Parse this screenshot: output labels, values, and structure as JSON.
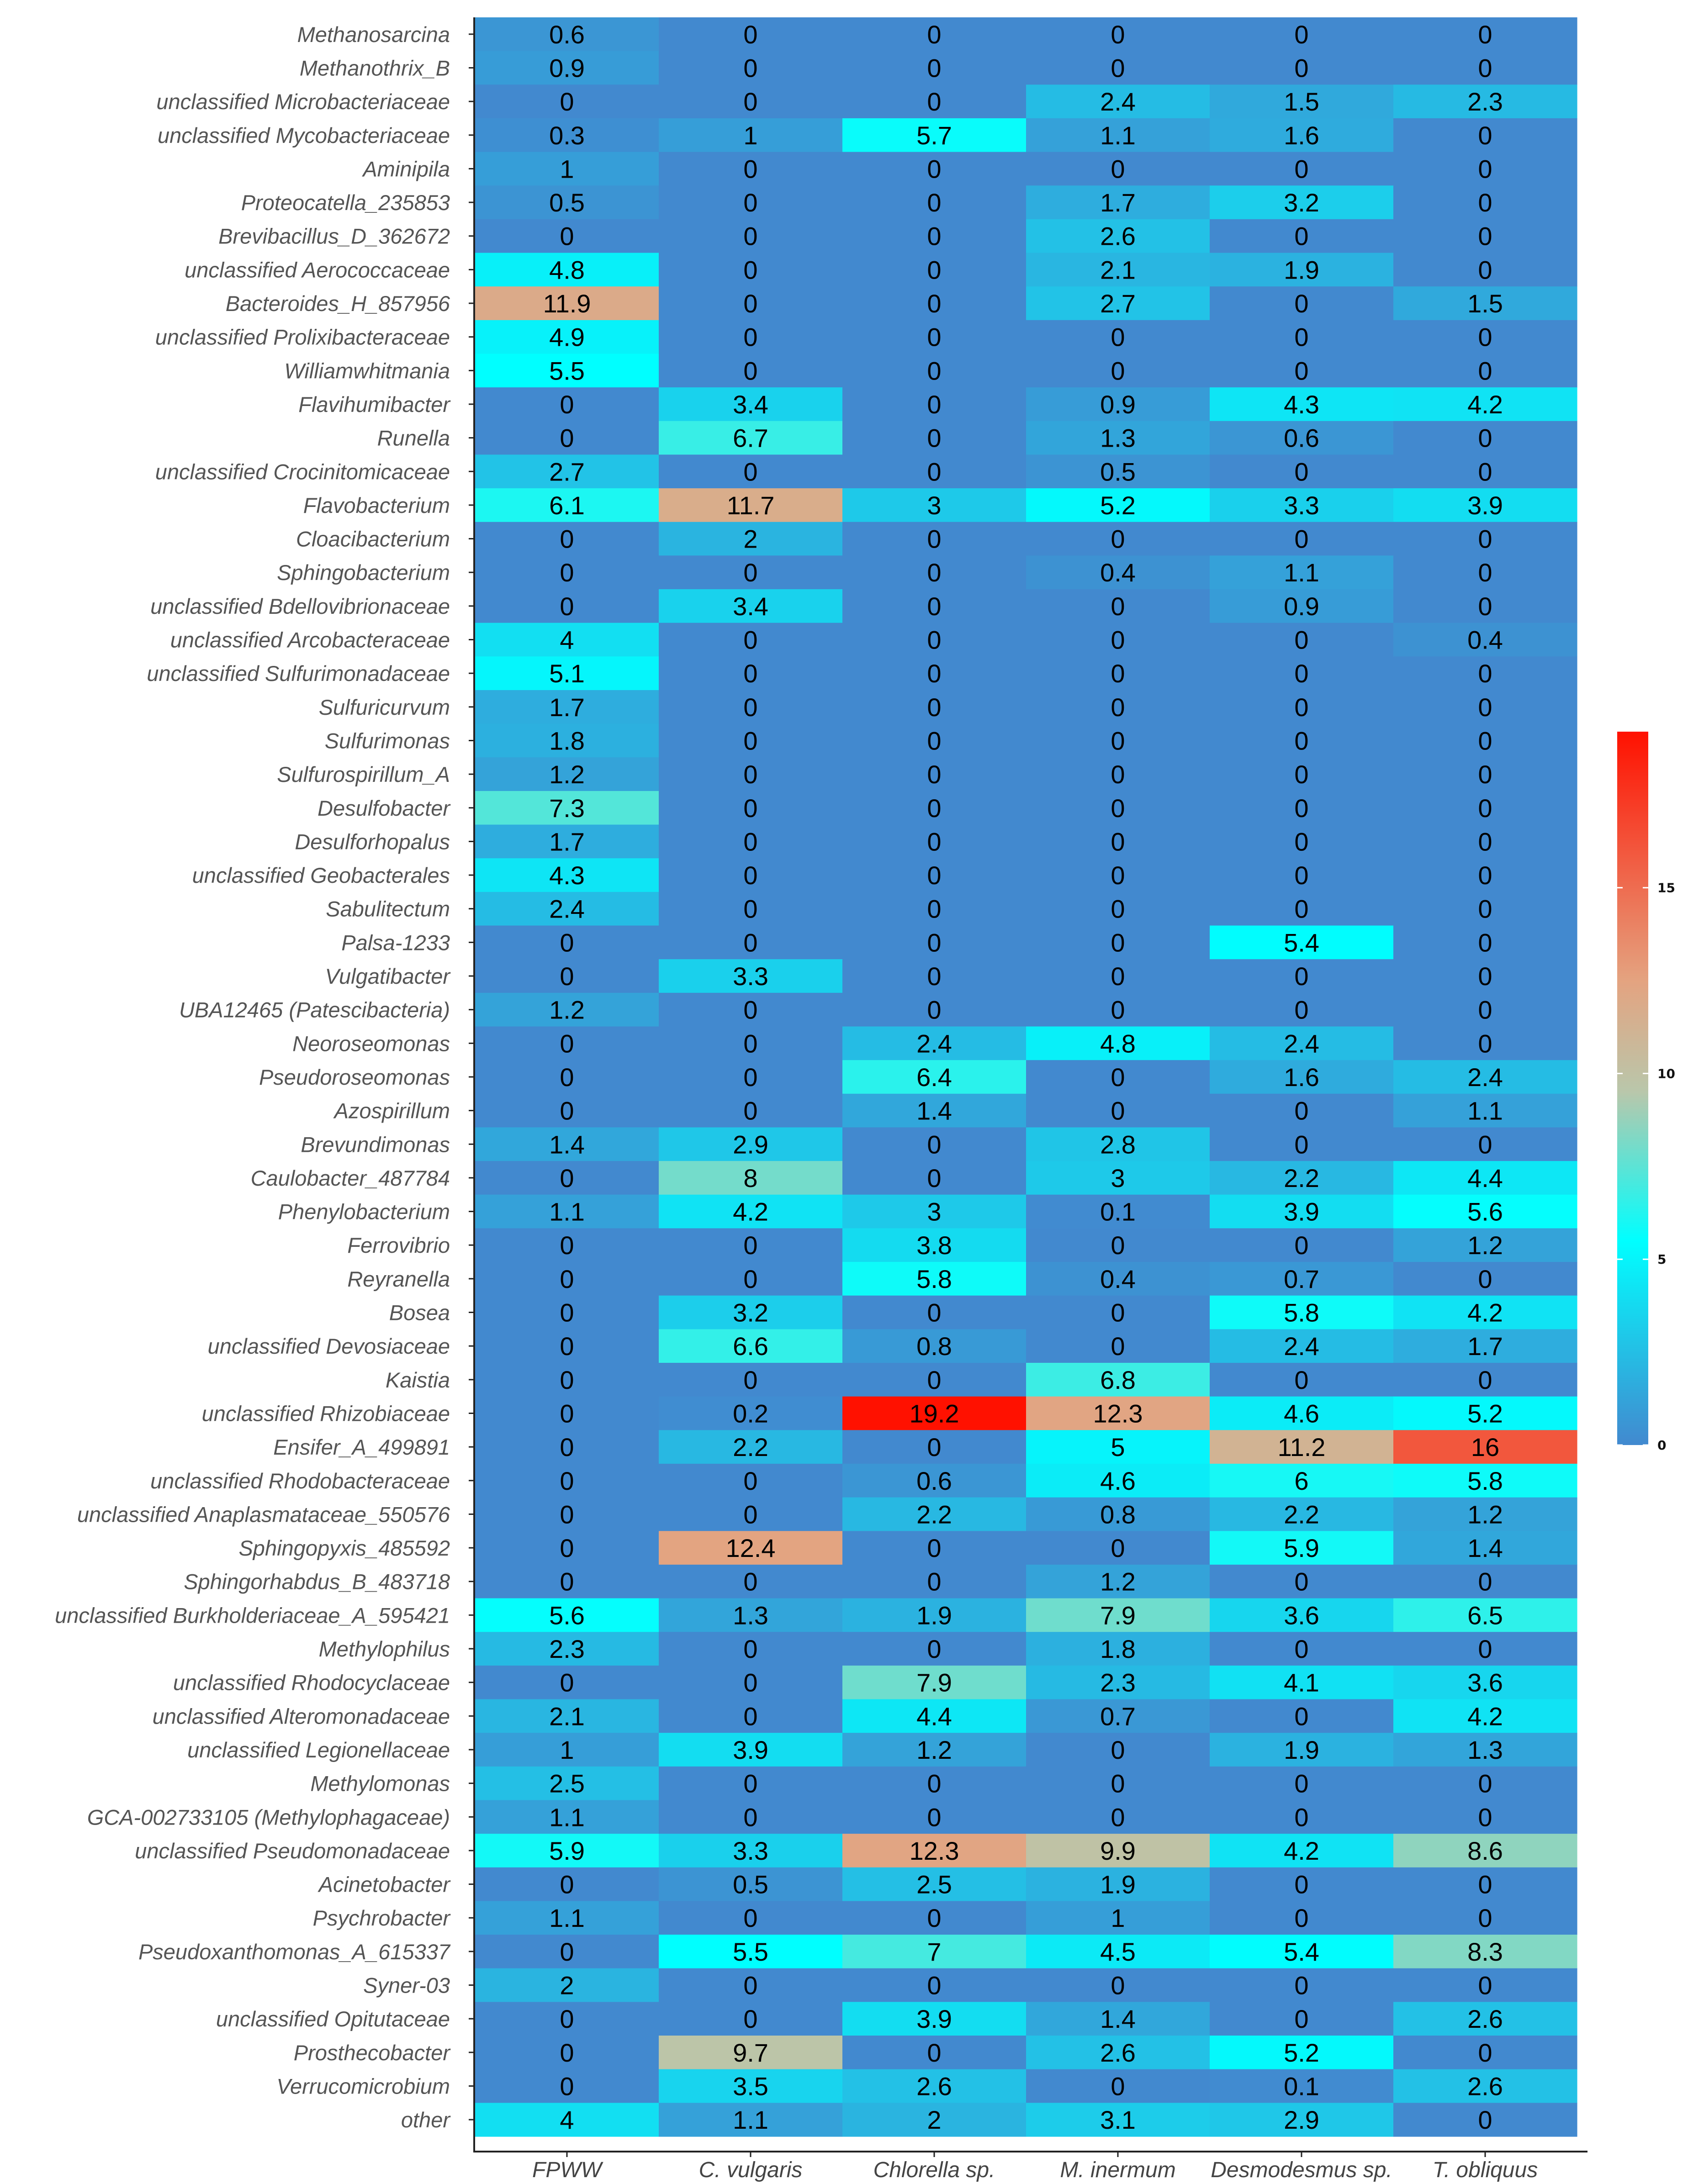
{
  "chart_data": {
    "type": "heatmap",
    "title": "",
    "xlabel": "",
    "ylabel": "",
    "columns": [
      "FPWW",
      "C. vulgaris",
      "Chlorella sp.",
      "M. inermum",
      "Desmodesmus sp.",
      "T. obliquus"
    ],
    "rows": [
      {
        "label": "Methanosarcina",
        "values": [
          0.6,
          0,
          0,
          0,
          0,
          0
        ]
      },
      {
        "label": "Methanothrix_B",
        "values": [
          0.9,
          0,
          0,
          0,
          0,
          0
        ]
      },
      {
        "label": "unclassified Microbacteriaceae",
        "values": [
          0,
          0,
          0,
          2.4,
          1.5,
          2.3
        ]
      },
      {
        "label": "unclassified Mycobacteriaceae",
        "values": [
          0.3,
          1,
          5.7,
          1.1,
          1.6,
          0
        ]
      },
      {
        "label": "Aminipila",
        "values": [
          1,
          0,
          0,
          0,
          0,
          0
        ]
      },
      {
        "label": "Proteocatella_235853",
        "values": [
          0.5,
          0,
          0,
          1.7,
          3.2,
          0
        ]
      },
      {
        "label": "Brevibacillus_D_362672",
        "values": [
          0,
          0,
          0,
          2.6,
          0,
          0
        ]
      },
      {
        "label": "unclassified Aerococcaceae",
        "values": [
          4.8,
          0,
          0,
          2.1,
          1.9,
          0
        ]
      },
      {
        "label": "Bacteroides_H_857956",
        "values": [
          11.9,
          0,
          0,
          2.7,
          0,
          1.5
        ]
      },
      {
        "label": "unclassified Prolixibacteraceae",
        "values": [
          4.9,
          0,
          0,
          0,
          0,
          0
        ]
      },
      {
        "label": "Williamwhitmania",
        "values": [
          5.5,
          0,
          0,
          0,
          0,
          0
        ]
      },
      {
        "label": "Flavihumibacter",
        "values": [
          0,
          3.4,
          0,
          0.9,
          4.3,
          4.2
        ]
      },
      {
        "label": "Runella",
        "values": [
          0,
          6.7,
          0,
          1.3,
          0.6,
          0
        ]
      },
      {
        "label": "unclassified Crocinitomicaceae",
        "values": [
          2.7,
          0,
          0,
          0.5,
          0,
          0
        ]
      },
      {
        "label": "Flavobacterium",
        "values": [
          6.1,
          11.7,
          3,
          5.2,
          3.3,
          3.9
        ]
      },
      {
        "label": "Cloacibacterium",
        "values": [
          0,
          2,
          0,
          0,
          0,
          0
        ]
      },
      {
        "label": "Sphingobacterium",
        "values": [
          0,
          0,
          0,
          0.4,
          1.1,
          0
        ]
      },
      {
        "label": "unclassified Bdellovibrionaceae",
        "values": [
          0,
          3.4,
          0,
          0,
          0.9,
          0
        ]
      },
      {
        "label": "unclassified Arcobacteraceae",
        "values": [
          4,
          0,
          0,
          0,
          0,
          0.4
        ]
      },
      {
        "label": "unclassified Sulfurimonadaceae",
        "values": [
          5.1,
          0,
          0,
          0,
          0,
          0
        ]
      },
      {
        "label": "Sulfuricurvum",
        "values": [
          1.7,
          0,
          0,
          0,
          0,
          0
        ]
      },
      {
        "label": "Sulfurimonas",
        "values": [
          1.8,
          0,
          0,
          0,
          0,
          0
        ]
      },
      {
        "label": "Sulfurospirillum_A",
        "values": [
          1.2,
          0,
          0,
          0,
          0,
          0
        ]
      },
      {
        "label": "Desulfobacter",
        "values": [
          7.3,
          0,
          0,
          0,
          0,
          0
        ]
      },
      {
        "label": "Desulforhopalus",
        "values": [
          1.7,
          0,
          0,
          0,
          0,
          0
        ]
      },
      {
        "label": "unclassified Geobacterales",
        "values": [
          4.3,
          0,
          0,
          0,
          0,
          0
        ]
      },
      {
        "label": "Sabulitectum",
        "values": [
          2.4,
          0,
          0,
          0,
          0,
          0
        ]
      },
      {
        "label": "Palsa-1233",
        "values": [
          0,
          0,
          0,
          0,
          5.4,
          0
        ]
      },
      {
        "label": "Vulgatibacter",
        "values": [
          0,
          3.3,
          0,
          0,
          0,
          0
        ]
      },
      {
        "label": "UBA12465 (Patescibacteria)",
        "values": [
          1.2,
          0,
          0,
          0,
          0,
          0
        ]
      },
      {
        "label": "Neoroseomonas",
        "values": [
          0,
          0,
          2.4,
          4.8,
          2.4,
          0
        ]
      },
      {
        "label": "Pseudoroseomonas",
        "values": [
          0,
          0,
          6.4,
          0,
          1.6,
          2.4
        ]
      },
      {
        "label": "Azospirillum",
        "values": [
          0,
          0,
          1.4,
          0,
          0,
          1.1
        ]
      },
      {
        "label": "Brevundimonas",
        "values": [
          1.4,
          2.9,
          0,
          2.8,
          0,
          0
        ]
      },
      {
        "label": "Caulobacter_487784",
        "values": [
          0,
          8,
          0,
          3,
          2.2,
          4.4
        ]
      },
      {
        "label": "Phenylobacterium",
        "values": [
          1.1,
          4.2,
          3,
          0.1,
          3.9,
          5.6
        ]
      },
      {
        "label": "Ferrovibrio",
        "values": [
          0,
          0,
          3.8,
          0,
          0,
          1.2
        ]
      },
      {
        "label": "Reyranella",
        "values": [
          0,
          0,
          5.8,
          0.4,
          0.7,
          0
        ]
      },
      {
        "label": "Bosea",
        "values": [
          0,
          3.2,
          0,
          0,
          5.8,
          4.2
        ]
      },
      {
        "label": "unclassified Devosiaceae",
        "values": [
          0,
          6.6,
          0.8,
          0,
          2.4,
          1.7
        ]
      },
      {
        "label": "Kaistia",
        "values": [
          0,
          0,
          0,
          6.8,
          0,
          0
        ]
      },
      {
        "label": "unclassified Rhizobiaceae",
        "values": [
          0,
          0.2,
          19.2,
          12.3,
          4.6,
          5.2
        ]
      },
      {
        "label": "Ensifer_A_499891",
        "values": [
          0,
          2.2,
          0,
          5,
          11.2,
          16
        ]
      },
      {
        "label": "unclassified Rhodobacteraceae",
        "values": [
          0,
          0,
          0.6,
          4.6,
          6,
          5.8
        ]
      },
      {
        "label": "unclassified Anaplasmataceae_550576",
        "values": [
          0,
          0,
          2.2,
          0.8,
          2.2,
          1.2
        ]
      },
      {
        "label": "Sphingopyxis_485592",
        "values": [
          0,
          12.4,
          0,
          0,
          5.9,
          1.4
        ]
      },
      {
        "label": "Sphingorhabdus_B_483718",
        "values": [
          0,
          0,
          0,
          1.2,
          0,
          0
        ]
      },
      {
        "label": "unclassified Burkholderiaceae_A_595421",
        "values": [
          5.6,
          1.3,
          1.9,
          7.9,
          3.6,
          6.5
        ]
      },
      {
        "label": "Methylophilus",
        "values": [
          2.3,
          0,
          0,
          1.8,
          0,
          0
        ]
      },
      {
        "label": "unclassified Rhodocyclaceae",
        "values": [
          0,
          0,
          7.9,
          2.3,
          4.1,
          3.6
        ]
      },
      {
        "label": "unclassified Alteromonadaceae",
        "values": [
          2.1,
          0,
          4.4,
          0.7,
          0,
          4.2
        ]
      },
      {
        "label": "unclassified Legionellaceae",
        "values": [
          1,
          3.9,
          1.2,
          0,
          1.9,
          1.3
        ]
      },
      {
        "label": "Methylomonas",
        "values": [
          2.5,
          0,
          0,
          0,
          0,
          0
        ]
      },
      {
        "label": "GCA-002733105 (Methylophagaceae)",
        "values": [
          1.1,
          0,
          0,
          0,
          0,
          0
        ]
      },
      {
        "label": "unclassified Pseudomonadaceae",
        "values": [
          5.9,
          3.3,
          12.3,
          9.9,
          4.2,
          8.6
        ]
      },
      {
        "label": "Acinetobacter",
        "values": [
          0,
          0.5,
          2.5,
          1.9,
          0,
          0
        ]
      },
      {
        "label": "Psychrobacter",
        "values": [
          1.1,
          0,
          0,
          1,
          0,
          0
        ]
      },
      {
        "label": "Pseudoxanthomonas_A_615337",
        "values": [
          0,
          5.5,
          7,
          4.5,
          5.4,
          8.3
        ]
      },
      {
        "label": "Syner-03",
        "values": [
          2,
          0,
          0,
          0,
          0,
          0
        ]
      },
      {
        "label": "unclassified Opitutaceae",
        "values": [
          0,
          0,
          3.9,
          1.4,
          0,
          2.6
        ]
      },
      {
        "label": "Prosthecobacter",
        "values": [
          0,
          9.7,
          0,
          2.6,
          5.2,
          0
        ]
      },
      {
        "label": "Verrucomicrobium",
        "values": [
          0,
          3.5,
          2.6,
          0,
          0.1,
          2.6
        ]
      },
      {
        "label": "other",
        "values": [
          4,
          1.1,
          2,
          3.1,
          2.9,
          0
        ]
      }
    ],
    "color_scale": {
      "min": 0,
      "max": 19.2,
      "stops": [
        {
          "value": 0,
          "color": "#4289cf"
        },
        {
          "value": 5.5,
          "color": "#00ffff"
        },
        {
          "value": 9.5,
          "color": "#b9c7ab"
        },
        {
          "value": 12.5,
          "color": "#e4a380"
        },
        {
          "value": 19.2,
          "color": "#ff1100"
        }
      ]
    },
    "legend": {
      "position": "right",
      "ticks": [
        "0",
        "5",
        "10",
        "15"
      ]
    }
  }
}
